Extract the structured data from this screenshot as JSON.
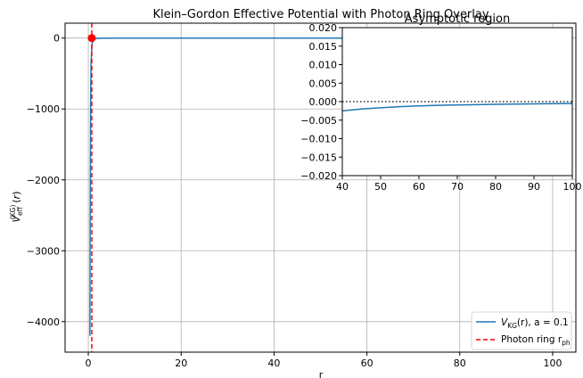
{
  "chart_data": [
    {
      "type": "line",
      "title": "Klein–Gordon Effective Potential with Photon Ring Overlay",
      "xlabel": "r",
      "ylabel": "V_eff^(KG)(r)",
      "xlim": [
        -5,
        105
      ],
      "ylim": [
        -4430,
        210
      ],
      "xticks": [
        0,
        20,
        40,
        60,
        80,
        100
      ],
      "yticks": [
        0,
        -1000,
        -2000,
        -3000,
        -4000
      ],
      "xtick_labels": [
        "0",
        "20",
        "40",
        "60",
        "80",
        "100"
      ],
      "ytick_labels": [
        "0",
        "−1000",
        "−2000",
        "−3000",
        "−4000"
      ],
      "grid": true,
      "series": [
        {
          "name": "V_KG(r), a = 0.1",
          "color": "#1f77b4",
          "x": [
            0.35,
            0.4,
            0.5,
            0.6,
            0.8,
            1.0,
            1.5,
            2,
            3,
            5,
            10,
            20,
            40,
            60,
            80,
            100
          ],
          "y": [
            -4200,
            -2600,
            -900,
            -350,
            -90,
            -35,
            -10,
            -4,
            -1.5,
            -0.5,
            -0.1,
            -0.03,
            -0.008,
            -0.004,
            -0.002,
            -0.001
          ]
        }
      ],
      "vlines": [
        {
          "name": "Photon ring r_ph",
          "x": 0.75,
          "color": "#ff0000",
          "style": "dashed"
        }
      ],
      "points": [
        {
          "x": 0.75,
          "y": 0,
          "color": "#ff0000"
        }
      ],
      "legend": {
        "placement": "lower-right",
        "entries": [
          {
            "label_main": "V",
            "label_sub": "KG",
            "label_rest": "(r),  a = 0.1",
            "color": "#1f77b4",
            "style": "solid"
          },
          {
            "label_main": "Photon ring r",
            "label_sub": "ph",
            "label_rest": "",
            "color": "#ff0000",
            "style": "dashed"
          }
        ]
      }
    },
    {
      "type": "line",
      "title": "Asymptotic region",
      "xlim": [
        40,
        100
      ],
      "ylim": [
        -0.02,
        0.02
      ],
      "xticks": [
        40,
        50,
        60,
        70,
        80,
        90,
        100
      ],
      "yticks": [
        0.02,
        0.015,
        0.01,
        0.005,
        0,
        -0.005,
        -0.01,
        -0.015,
        -0.02
      ],
      "xtick_labels": [
        "40",
        "50",
        "60",
        "70",
        "80",
        "90",
        "100"
      ],
      "ytick_labels": [
        "0.020",
        "0.015",
        "0.010",
        "0.005",
        "0.000",
        "−0.005",
        "−0.010",
        "−0.015",
        "−0.020"
      ],
      "grid": false,
      "series": [
        {
          "name": "V_KG(r), a = 0.1",
          "color": "#1f77b4",
          "x": [
            40,
            45,
            50,
            55,
            60,
            65,
            70,
            75,
            80,
            85,
            90,
            95,
            100
          ],
          "y": [
            -0.0025,
            -0.002,
            -0.00165,
            -0.00135,
            -0.00115,
            -0.001,
            -0.0009,
            -0.0008,
            -0.00072,
            -0.00066,
            -0.0006,
            -0.00055,
            -0.0005
          ]
        }
      ],
      "hlines": [
        {
          "y": 0,
          "color": "#000000",
          "style": "dotted"
        }
      ]
    }
  ]
}
